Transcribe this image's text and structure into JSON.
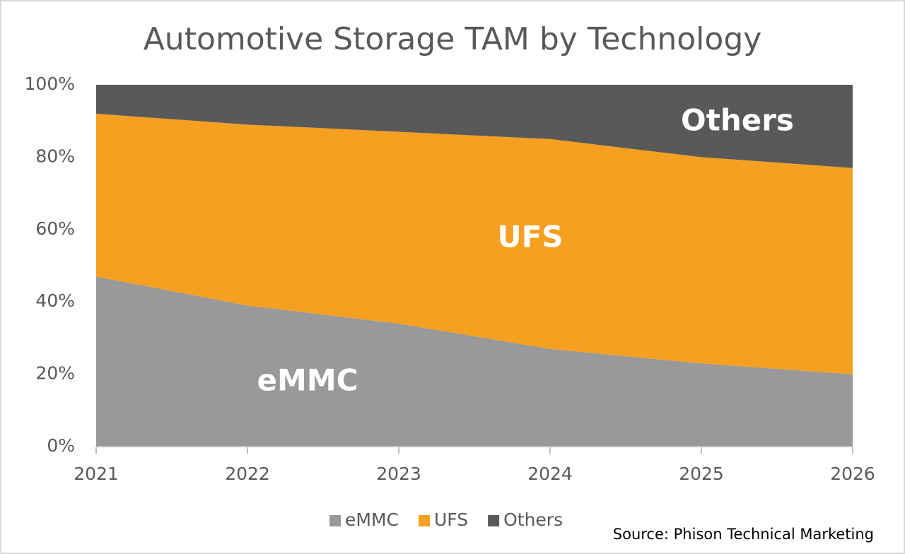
{
  "chart_data": {
    "type": "stacked_area",
    "title": "Automotive Storage TAM by Technology",
    "categories": [
      "2021",
      "2022",
      "2023",
      "2024",
      "2025",
      "2026"
    ],
    "series": [
      {
        "name": "eMMC",
        "color": "#999999",
        "values": [
          47,
          39,
          34,
          27,
          23,
          20
        ]
      },
      {
        "name": "UFS",
        "color": "#f5a020",
        "values": [
          45,
          50,
          53,
          58,
          57,
          57
        ]
      },
      {
        "name": "Others",
        "color": "#595959",
        "values": [
          8,
          11,
          13,
          15,
          20,
          23
        ]
      }
    ],
    "ylim": [
      0,
      100
    ],
    "yticks": [
      {
        "value": 0,
        "label": "0%"
      },
      {
        "value": 20,
        "label": "20%"
      },
      {
        "value": 40,
        "label": "40%"
      },
      {
        "value": 60,
        "label": "60%"
      },
      {
        "value": 80,
        "label": "80%"
      },
      {
        "value": 100,
        "label": "100%"
      }
    ],
    "grid": false,
    "legend": "bottom",
    "annotations": [
      "eMMC",
      "UFS",
      "Others"
    ],
    "source": "Source: Phison Technical Marketing"
  }
}
